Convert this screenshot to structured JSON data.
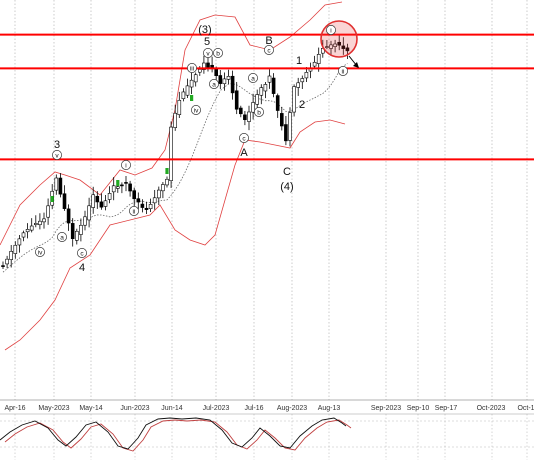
{
  "chart_data": {
    "type": "candlestick",
    "title": "",
    "xlabel": "",
    "ylabel": "",
    "x_tick_labels": [
      "Apr-16",
      "May-2023",
      "May-14",
      "Jun-2023",
      "Jun-14",
      "Jul-2023",
      "Jul-16",
      "Aug-2023",
      "Aug-13",
      "Sep-2023",
      "Sep-10",
      "Sep-17",
      "Oct-2023",
      "Oct-1"
    ],
    "horizontal_levels_ylevel": [
      0.075,
      0.148,
      0.345
    ],
    "highlight_circle": "top swing near Aug-13",
    "wave_labels": [
      {
        "text": "3",
        "style": "plain"
      },
      {
        "text": "v",
        "style": "circled"
      },
      {
        "text": "a",
        "style": "circled"
      },
      {
        "text": "iv",
        "style": "circled"
      },
      {
        "text": "c",
        "style": "circled"
      },
      {
        "text": "4",
        "style": "plain"
      },
      {
        "text": "i",
        "style": "circled"
      },
      {
        "text": "ii",
        "style": "circled"
      },
      {
        "text": "(3)",
        "style": "plain"
      },
      {
        "text": "5",
        "style": "plain"
      },
      {
        "text": "v",
        "style": "circled"
      },
      {
        "text": "b",
        "style": "circled"
      },
      {
        "text": "iii",
        "style": "circled"
      },
      {
        "text": "a",
        "style": "circled"
      },
      {
        "text": "iv",
        "style": "circled"
      },
      {
        "text": "c",
        "style": "circled"
      },
      {
        "text": "A",
        "style": "plain"
      },
      {
        "text": "B",
        "style": "plain"
      },
      {
        "text": "c",
        "style": "circled"
      },
      {
        "text": "a",
        "style": "circled"
      },
      {
        "text": "b",
        "style": "circled"
      },
      {
        "text": "C",
        "style": "plain"
      },
      {
        "text": "(4)",
        "style": "plain"
      },
      {
        "text": "1",
        "style": "plain"
      },
      {
        "text": "2",
        "style": "plain"
      },
      {
        "text": "i",
        "style": "circled"
      },
      {
        "text": "ii",
        "style": "circled"
      }
    ],
    "series": [
      {
        "type": "candles",
        "count": 85
      },
      {
        "type": "bollinger-band"
      },
      {
        "type": "moving-average"
      },
      {
        "type": "stochastic-oscillator"
      }
    ],
    "grid": "vertical dotted",
    "colors": {
      "levels": "#ff0000",
      "bands": "#e04040",
      "candles": "#000000",
      "green_marker": "#22aa22",
      "ma": "#666666",
      "osc_main": "#111111",
      "osc_signal": "#c04040",
      "highlight": "#e03030"
    }
  }
}
